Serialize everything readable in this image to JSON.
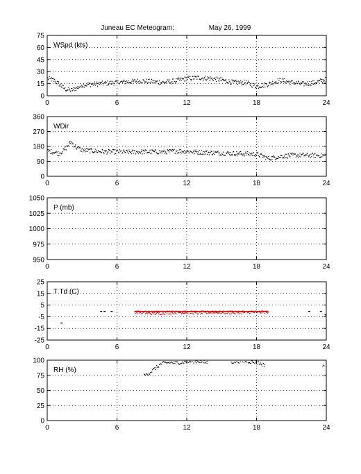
{
  "title": {
    "station": "Juneau EC Meteogram:",
    "date": "May 26, 1999"
  },
  "colors": {
    "data": "#000000",
    "dewpoint": "#cc0000",
    "grid": "#000000",
    "axes": "#000000"
  },
  "chart_data": [
    {
      "type": "scatter",
      "ylabel": "WSpd (kts)",
      "xlim": [
        0,
        24
      ],
      "ylim": [
        0,
        75
      ],
      "xticks": [
        0,
        6,
        12,
        18,
        24
      ],
      "yticks": [
        0,
        15,
        30,
        45,
        60,
        75
      ],
      "grid": true,
      "series": [
        {
          "x": [
            0,
            0.5,
            1,
            1.5,
            2,
            2.5,
            3,
            4,
            5,
            6,
            7,
            8,
            9,
            10,
            11,
            12,
            13,
            14,
            15,
            16,
            17,
            18,
            19,
            20,
            21,
            22,
            23,
            24
          ],
          "y": [
            22,
            20,
            15,
            9,
            7,
            10,
            14,
            15,
            16,
            17,
            18,
            19,
            18,
            17,
            19,
            22,
            23,
            22,
            20,
            17,
            17,
            12,
            15,
            20,
            17,
            15,
            17,
            21
          ],
          "spread": 3
        }
      ]
    },
    {
      "type": "scatter",
      "ylabel": "WDir",
      "xlim": [
        0,
        24
      ],
      "ylim": [
        0,
        360
      ],
      "xticks": [
        0,
        6,
        12,
        18,
        24
      ],
      "yticks": [
        0,
        90,
        180,
        270,
        360
      ],
      "grid": true,
      "series": [
        {
          "x": [
            0,
            0.5,
            1,
            1.5,
            2,
            2.5,
            3,
            4,
            5,
            6,
            7,
            8,
            9,
            10,
            11,
            12,
            13,
            14,
            15,
            16,
            17,
            18,
            19,
            20,
            21,
            22,
            23,
            24
          ],
          "y": [
            155,
            150,
            140,
            165,
            210,
            175,
            160,
            155,
            150,
            150,
            148,
            150,
            150,
            148,
            155,
            152,
            148,
            145,
            142,
            140,
            138,
            135,
            110,
            122,
            128,
            130,
            128,
            128
          ],
          "spread": 14
        }
      ]
    },
    {
      "type": "scatter",
      "ylabel": "P (mb)",
      "xlim": [
        0,
        24
      ],
      "ylim": [
        950,
        1050
      ],
      "xticks": [
        0,
        6,
        12,
        18,
        24
      ],
      "yticks": [
        950,
        975,
        1000,
        1025,
        1050
      ],
      "grid": true,
      "series": []
    },
    {
      "type": "scatter",
      "ylabel": "T Td (C)",
      "xlim": [
        0,
        24
      ],
      "ylim": [
        -25,
        25
      ],
      "xticks": [
        0,
        6,
        12,
        18,
        24
      ],
      "yticks": [
        -25,
        -15,
        -5,
        5,
        15,
        25
      ],
      "grid": true,
      "series": [
        {
          "x": [
            7.5,
            9,
            10,
            11,
            12,
            13,
            14,
            15,
            16,
            17,
            18,
            19
          ],
          "y": [
            0,
            0,
            0,
            0,
            0,
            0,
            0,
            0,
            0,
            0,
            0,
            0
          ],
          "spread": 0.3
        },
        {
          "x": [
            7.5,
            9,
            10,
            11,
            12,
            13,
            14,
            15,
            16,
            17,
            18,
            19
          ],
          "y": [
            -0.5,
            -2,
            -1.5,
            -1,
            -1,
            -1.5,
            -1,
            -1,
            -1.2,
            -1,
            -0.8,
            -0.6
          ],
          "spread": 1.2
        },
        {
          "x": [
            1.2,
            4.6,
            4.9,
            5.5,
            22.5,
            23.5,
            23.9
          ],
          "y": [
            -10,
            0,
            0,
            0,
            0,
            0,
            -3
          ],
          "spread": 0.5
        }
      ]
    },
    {
      "type": "scatter",
      "ylabel": "RH (%)",
      "xlim": [
        0,
        24
      ],
      "ylim": [
        0,
        100
      ],
      "xticks": [
        0,
        6,
        12,
        18,
        24
      ],
      "yticks": [
        0,
        25,
        50,
        75,
        100
      ],
      "grid": true,
      "series": [
        {
          "x": [
            8.3,
            8.8,
            9.3,
            9.8,
            10.5,
            11,
            12,
            12.5,
            13,
            13.5,
            16,
            16.5,
            17,
            17.5,
            18,
            18.5,
            23.8
          ],
          "y": [
            75,
            80,
            88,
            95,
            97,
            96,
            98,
            99,
            99,
            97,
            98,
            99,
            99,
            98,
            97,
            93,
            92
          ],
          "spread": 3
        }
      ]
    }
  ]
}
